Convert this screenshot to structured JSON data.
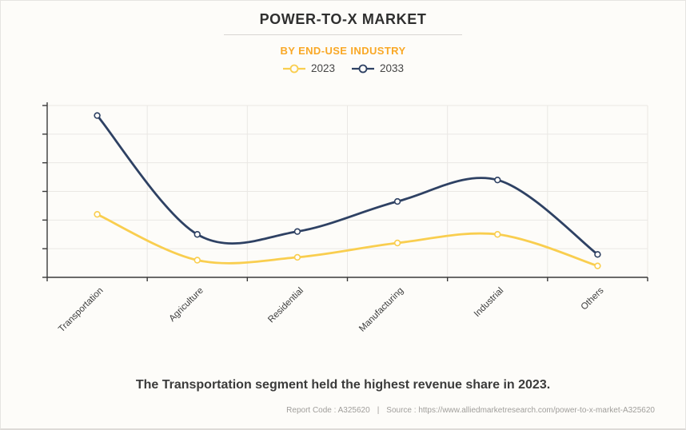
{
  "header": {
    "title": "POWER-TO-X MARKET",
    "subtitle": "BY END-USE INDUSTRY"
  },
  "legend": [
    {
      "label": "2023",
      "color": "#F9CE4F"
    },
    {
      "label": "2033",
      "color": "#2E4163"
    }
  ],
  "chart_data": {
    "type": "line",
    "title": "POWER-TO-X MARKET",
    "subtitle": "BY END-USE INDUSTRY",
    "categories": [
      "Transportation",
      "Agriculture",
      "Residential",
      "Manufacturing",
      "Industrial",
      "Others"
    ],
    "series": [
      {
        "name": "2033",
        "color": "#2E4163",
        "values": [
          5.65,
          1.5,
          1.6,
          2.65,
          3.4,
          0.8
        ]
      },
      {
        "name": "2023",
        "color": "#F9CE4F",
        "values": [
          2.2,
          0.6,
          0.7,
          1.2,
          1.5,
          0.4
        ]
      }
    ],
    "xlabel": "",
    "ylabel": "",
    "ylim": [
      0,
      6
    ],
    "y_axis_tick_labels": [],
    "grid": true,
    "legend_position": "top",
    "curve": "smooth",
    "marker": "hollow-circle",
    "note": "Y axis shows tick marks but no numeric labels; values estimated in gridline units (1 unit per horizontal gridline, axis bottom = 0)."
  },
  "caption": "The Transportation segment held the highest revenue share in 2023.",
  "footer": {
    "report_code": "Report Code : A325620",
    "separator": "|",
    "source": "Source : https://www.alliedmarketresearch.com/power-to-x-market-A325620"
  },
  "colors": {
    "background": "#FDFCF9",
    "subtitle_orange": "#F9A826",
    "axis": "#3A3A3A",
    "gridline": "#EAE8E4",
    "series_2023": "#F9CE4F",
    "series_2033": "#2E4163"
  }
}
